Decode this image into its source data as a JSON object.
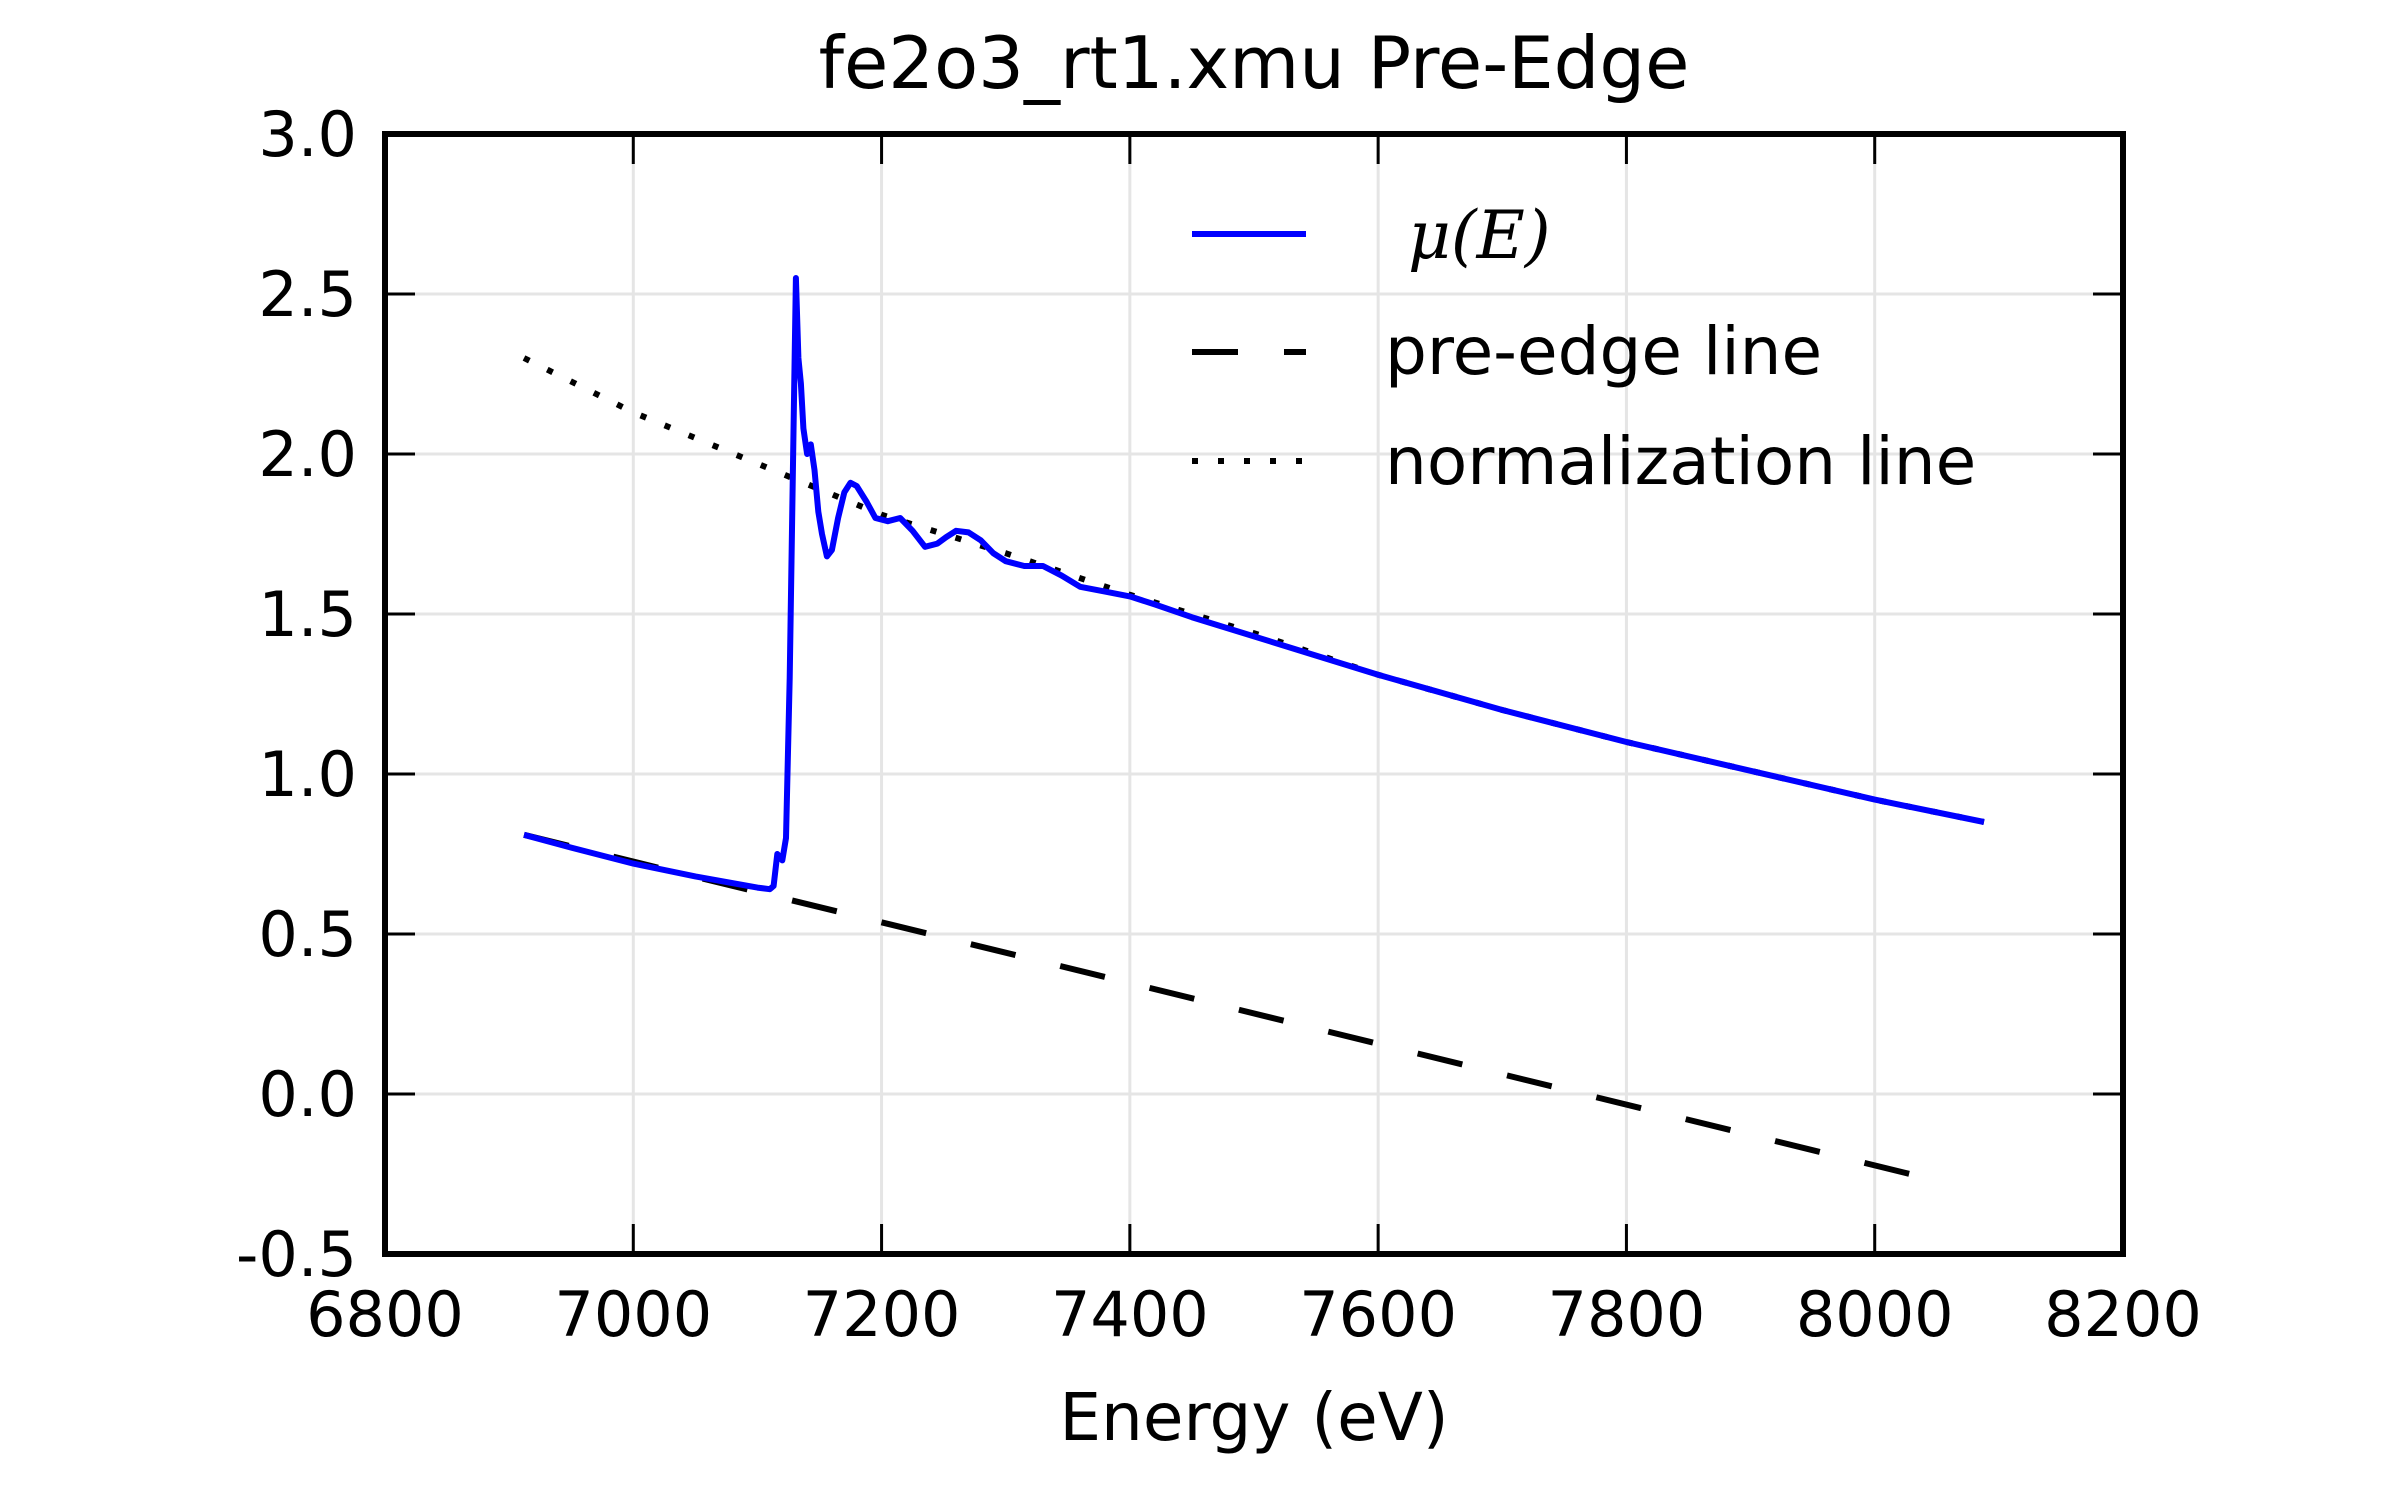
{
  "chart_data": {
    "type": "line",
    "title": "fe2o3_rt1.xmu Pre-Edge",
    "xlabel": "Energy (eV)",
    "ylabel": "",
    "xlim": [
      6800,
      8200
    ],
    "ylim": [
      -0.5,
      3.0
    ],
    "xticks": [
      "6800",
      "7000",
      "7200",
      "7400",
      "7600",
      "7800",
      "8000",
      "8200"
    ],
    "yticks": [
      "-0.5",
      "0.0",
      "0.5",
      "1.0",
      "1.5",
      "2.0",
      "2.5",
      "3.0"
    ],
    "grid": true,
    "legend_position": "top-right",
    "series": [
      {
        "name": "μ(E)",
        "style": "solid",
        "color": "#0000ff",
        "x": [
          6912,
          6950,
          7000,
          7050,
          7100,
          7110,
          7113,
          7116,
          7120,
          7123,
          7126,
          7129,
          7131,
          7133,
          7135,
          7137,
          7140,
          7143,
          7146,
          7149,
          7152,
          7156,
          7160,
          7165,
          7170,
          7175,
          7180,
          7188,
          7195,
          7205,
          7215,
          7225,
          7235,
          7245,
          7252,
          7260,
          7270,
          7280,
          7290,
          7300,
          7315,
          7330,
          7345,
          7360,
          7380,
          7400,
          7420,
          7450,
          7500,
          7550,
          7600,
          7700,
          7800,
          7900,
          8000,
          8088
        ],
        "y": [
          0.81,
          0.77,
          0.72,
          0.68,
          0.645,
          0.64,
          0.65,
          0.75,
          0.73,
          0.8,
          1.3,
          2.05,
          2.55,
          2.3,
          2.22,
          2.08,
          2.0,
          2.03,
          1.95,
          1.82,
          1.75,
          1.68,
          1.7,
          1.8,
          1.88,
          1.91,
          1.9,
          1.85,
          1.8,
          1.79,
          1.8,
          1.76,
          1.71,
          1.72,
          1.74,
          1.76,
          1.755,
          1.73,
          1.69,
          1.665,
          1.65,
          1.65,
          1.62,
          1.585,
          1.57,
          1.555,
          1.53,
          1.49,
          1.43,
          1.37,
          1.31,
          1.2,
          1.1,
          1.01,
          0.92,
          0.85
        ]
      },
      {
        "name": "pre-edge line",
        "style": "dashed",
        "color": "#000000",
        "x": [
          6912,
          8060
        ],
        "y": [
          0.81,
          -0.28
        ]
      },
      {
        "name": "normalization line",
        "style": "dotted",
        "color": "#000000",
        "x": [
          6912,
          7000,
          7100,
          7200,
          7300,
          7400,
          7500,
          7600,
          7700,
          7800,
          7900,
          8000,
          8088
        ],
        "y": [
          2.3,
          2.13,
          1.97,
          1.81,
          1.69,
          1.56,
          1.44,
          1.31,
          1.2,
          1.1,
          1.01,
          0.92,
          0.85
        ]
      }
    ]
  },
  "colors": {
    "grid": "#e5e5e5",
    "axes": "#000000"
  }
}
